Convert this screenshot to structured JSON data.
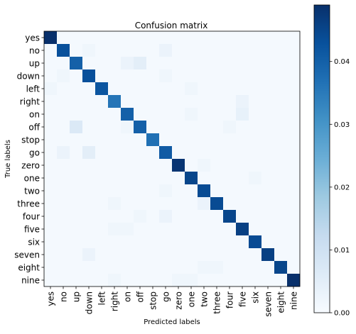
{
  "chart_data": {
    "type": "heatmap",
    "title": "Confusion matrix",
    "xlabel": "Predicted labels",
    "ylabel": "True labels",
    "labels": [
      "yes",
      "no",
      "up",
      "down",
      "left",
      "right",
      "on",
      "off",
      "stop",
      "go",
      "zero",
      "one",
      "two",
      "three",
      "four",
      "five",
      "six",
      "seven",
      "eight",
      "nine"
    ],
    "diagonal": [
      0.049,
      0.043,
      0.04,
      0.043,
      0.042,
      0.036,
      0.04,
      0.04,
      0.037,
      0.041,
      0.048,
      0.045,
      0.044,
      0.044,
      0.045,
      0.046,
      0.044,
      0.046,
      0.045,
      0.049
    ],
    "off_diagonal": [
      {
        "row": 1,
        "col": 3,
        "value": 0.002
      },
      {
        "row": 1,
        "col": 9,
        "value": 0.003
      },
      {
        "row": 2,
        "col": 6,
        "value": 0.003
      },
      {
        "row": 2,
        "col": 7,
        "value": 0.005
      },
      {
        "row": 3,
        "col": 1,
        "value": 0.002
      },
      {
        "row": 3,
        "col": 9,
        "value": 0.002
      },
      {
        "row": 4,
        "col": 0,
        "value": 0.002
      },
      {
        "row": 4,
        "col": 11,
        "value": 0.002
      },
      {
        "row": 5,
        "col": 15,
        "value": 0.003
      },
      {
        "row": 6,
        "col": 11,
        "value": 0.002
      },
      {
        "row": 6,
        "col": 15,
        "value": 0.004
      },
      {
        "row": 7,
        "col": 2,
        "value": 0.007
      },
      {
        "row": 7,
        "col": 6,
        "value": 0.002
      },
      {
        "row": 7,
        "col": 14,
        "value": 0.002
      },
      {
        "row": 9,
        "col": 1,
        "value": 0.003
      },
      {
        "row": 9,
        "col": 3,
        "value": 0.005
      },
      {
        "row": 10,
        "col": 12,
        "value": 0.002
      },
      {
        "row": 11,
        "col": 16,
        "value": 0.002
      },
      {
        "row": 12,
        "col": 9,
        "value": 0.002
      },
      {
        "row": 13,
        "col": 5,
        "value": 0.002
      },
      {
        "row": 13,
        "col": 12,
        "value": 0.003
      },
      {
        "row": 14,
        "col": 7,
        "value": 0.002
      },
      {
        "row": 14,
        "col": 9,
        "value": 0.003
      },
      {
        "row": 15,
        "col": 5,
        "value": 0.002
      },
      {
        "row": 15,
        "col": 6,
        "value": 0.002
      },
      {
        "row": 17,
        "col": 3,
        "value": 0.003
      },
      {
        "row": 18,
        "col": 12,
        "value": 0.002
      },
      {
        "row": 18,
        "col": 13,
        "value": 0.002
      },
      {
        "row": 19,
        "col": 5,
        "value": 0.002
      },
      {
        "row": 19,
        "col": 10,
        "value": 0.002
      },
      {
        "row": 19,
        "col": 11,
        "value": 0.002
      }
    ],
    "base_value": 0.0008,
    "colormap": "Blues",
    "vmin": 0.0,
    "vmax": 0.049,
    "colorbar_ticks": [
      "0.00",
      "0.01",
      "0.02",
      "0.03",
      "0.04"
    ],
    "colorbar_tick_values": [
      0.0,
      0.01,
      0.02,
      0.03,
      0.04
    ],
    "grid": false
  }
}
